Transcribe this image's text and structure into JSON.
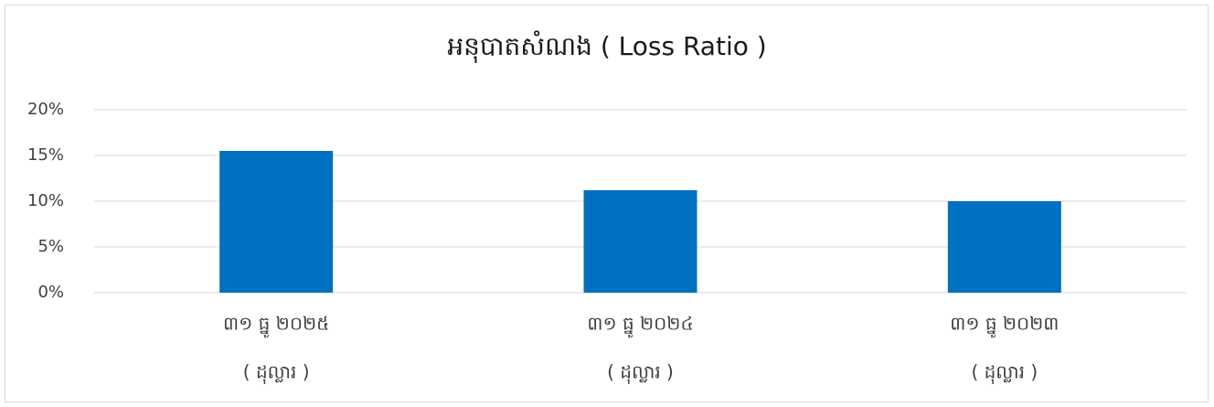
{
  "chart_data": {
    "type": "bar",
    "title": "អនុបាតសំណង ( Loss Ratio )",
    "categories": [
      [
        "៣១ ធ្នូ ២០២៥",
        "( ដុល្លារ )"
      ],
      [
        "៣១ ធ្នូ ២០២៤",
        "( ដុល្លារ )"
      ],
      [
        "៣១ ធ្នូ ២០២៣",
        "( ដុល្លារ )"
      ]
    ],
    "values": [
      15.5,
      11.2,
      10.0
    ],
    "color": "#0070c0",
    "ylim": [
      0,
      20
    ],
    "yticks": [
      {
        "value": 0,
        "label": "0%"
      },
      {
        "value": 5,
        "label": "5%"
      },
      {
        "value": 10,
        "label": "10%"
      },
      {
        "value": 15,
        "label": "15%"
      },
      {
        "value": 20,
        "label": "20%"
      }
    ],
    "grid": true
  }
}
